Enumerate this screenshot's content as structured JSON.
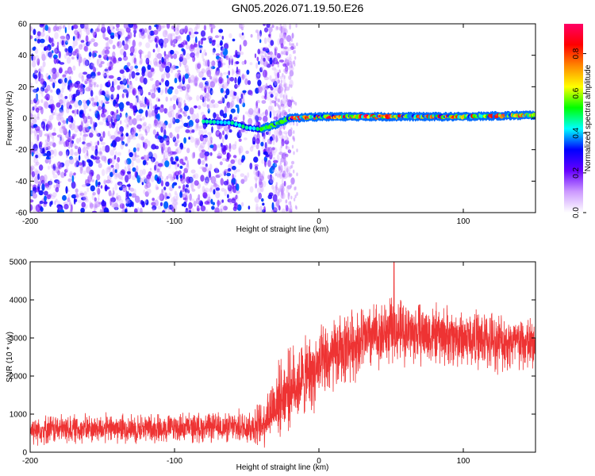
{
  "title": "GN05.2026.071.19.50.E26",
  "chart_data": [
    {
      "type": "heatmap",
      "xlabel": "Height of straight line (km)",
      "ylabel": "Frequency (Hz)",
      "xlim": [
        -200,
        150
      ],
      "ylim": [
        -60,
        60
      ],
      "xticks": [
        -200,
        -100,
        0,
        100
      ],
      "yticks": [
        -60,
        -40,
        -20,
        0,
        20,
        40,
        60
      ],
      "colorbar": {
        "label": "Normalized spectral amplitude",
        "range": [
          0.0,
          0.95
        ],
        "ticks": [
          0.0,
          0.2,
          0.4,
          0.6,
          0.8
        ],
        "tick_labels": [
          "0.0",
          "0.2",
          "0.4",
          "0.6",
          "0.8"
        ],
        "colormap": [
          "#ffffff",
          "#cc99ff",
          "#6600ff",
          "#0000ff",
          "#00ffff",
          "#00ff00",
          "#ffff00",
          "#ff8800",
          "#ff0000",
          "#ff0066"
        ]
      },
      "features": {
        "noise_region_x": [
          -200,
          -30
        ],
        "signal_track": [
          {
            "x": -80,
            "y": -2
          },
          {
            "x": -60,
            "y": -3
          },
          {
            "x": -50,
            "y": -6
          },
          {
            "x": -40,
            "y": -7
          },
          {
            "x": -30,
            "y": -4
          },
          {
            "x": -20,
            "y": 0
          },
          {
            "x": 0,
            "y": 1
          },
          {
            "x": 50,
            "y": 1
          },
          {
            "x": 100,
            "y": 1
          },
          {
            "x": 150,
            "y": 2
          }
        ],
        "signal_amplitude_range": [
          0.3,
          0.95
        ]
      }
    },
    {
      "type": "line",
      "xlabel": "Height of straight line (km)",
      "ylabel": "SNR (10 * v/v)",
      "xlim": [
        -200,
        150
      ],
      "ylim": [
        0,
        5000
      ],
      "xticks": [
        -200,
        -100,
        0,
        100
      ],
      "yticks": [
        0,
        1000,
        2000,
        3000,
        4000,
        5000
      ],
      "series_color": "#ee3333",
      "envelope": [
        {
          "x": -200,
          "mean": 600,
          "spread": 450
        },
        {
          "x": -150,
          "mean": 620,
          "spread": 450
        },
        {
          "x": -100,
          "mean": 640,
          "spread": 450
        },
        {
          "x": -60,
          "mean": 650,
          "spread": 450
        },
        {
          "x": -40,
          "mean": 700,
          "spread": 700
        },
        {
          "x": -30,
          "mean": 1300,
          "spread": 1100
        },
        {
          "x": -20,
          "mean": 1700,
          "spread": 1200
        },
        {
          "x": 0,
          "mean": 2200,
          "spread": 1200
        },
        {
          "x": 20,
          "mean": 2800,
          "spread": 1100
        },
        {
          "x": 50,
          "mean": 3200,
          "spread": 1000
        },
        {
          "x": 100,
          "mean": 3000,
          "spread": 900
        },
        {
          "x": 150,
          "mean": 2800,
          "spread": 900
        }
      ],
      "peak": {
        "x": 52,
        "y": 5000
      }
    }
  ]
}
